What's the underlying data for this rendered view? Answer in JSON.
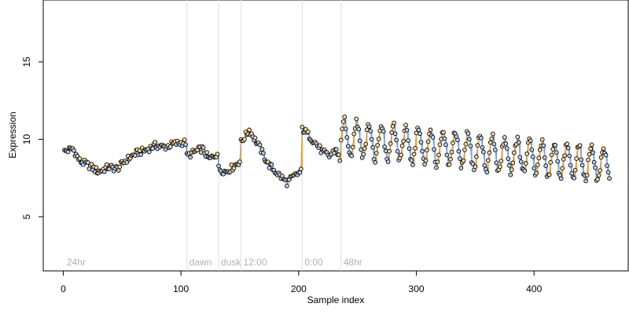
{
  "chart_data": {
    "type": "scatter",
    "xlabel": "Sample index",
    "ylabel": "Expression",
    "xlim": [
      -17,
      480
    ],
    "ylim": [
      1.5,
      19
    ],
    "xticks": [
      0,
      100,
      200,
      300,
      400
    ],
    "yticks": [
      5,
      10,
      15
    ],
    "grid": false,
    "colors": {
      "line": "#a8a8a8",
      "positive": "#f5a623",
      "negative": "#6d9ee6",
      "marker_edge": "#000000",
      "divider": "#e0e0e0",
      "annotation": "#b0b0b0"
    },
    "dividers": [
      {
        "x": 105,
        "label": "dawn"
      },
      {
        "x": 132,
        "label": "dusk"
      },
      {
        "x": 151,
        "label": "12:00"
      },
      {
        "x": 203,
        "label": "0:00"
      },
      {
        "x": 236,
        "label": "48hr"
      }
    ],
    "corner_label": {
      "x": 3,
      "label": "24hr"
    },
    "series": [
      {
        "segments": [
          {
            "x_start": 1,
            "x_end": 104,
            "points": [
              [
                1,
                9.2
              ],
              [
                8,
                9.4
              ],
              [
                14,
                8.6
              ],
              [
                22,
                8.3
              ],
              [
                30,
                7.9
              ],
              [
                38,
                8.2
              ],
              [
                46,
                8.1
              ],
              [
                54,
                8.7
              ],
              [
                62,
                9.1
              ],
              [
                70,
                9.3
              ],
              [
                78,
                9.6
              ],
              [
                86,
                9.5
              ],
              [
                94,
                9.7
              ],
              [
                102,
                9.8
              ]
            ]
          },
          {
            "x_start": 105,
            "x_end": 131,
            "points": [
              [
                105,
                8.9
              ],
              [
                112,
                9.2
              ],
              [
                118,
                9.4
              ],
              [
                124,
                8.7
              ],
              [
                131,
                9.1
              ]
            ]
          },
          {
            "x_start": 132,
            "x_end": 150,
            "points": [
              [
                132,
                8.1
              ],
              [
                138,
                7.9
              ],
              [
                144,
                8.2
              ],
              [
                150,
                8.6
              ]
            ]
          },
          {
            "x_start": 151,
            "x_end": 202,
            "points": [
              [
                151,
                9.8
              ],
              [
                158,
                10.6
              ],
              [
                166,
                9.6
              ],
              [
                174,
                8.4
              ],
              [
                182,
                7.8
              ],
              [
                190,
                7.2
              ],
              [
                196,
                7.6
              ],
              [
                202,
                7.9
              ]
            ]
          },
          {
            "x_start": 203,
            "x_end": 235,
            "points": [
              [
                203,
                10.7
              ],
              [
                208,
                10.3
              ],
              [
                214,
                9.8
              ],
              [
                220,
                9.2
              ],
              [
                226,
                8.9
              ],
              [
                232,
                9.4
              ],
              [
                235,
                8.6
              ]
            ]
          }
        ],
        "oscillating": {
          "x_start": 236,
          "x_end": 464,
          "center_start": 10.1,
          "center_end": 8.3,
          "amplitude_start": 1.2,
          "amplitude_end": 1.0,
          "period": 10.5
        }
      }
    ]
  }
}
